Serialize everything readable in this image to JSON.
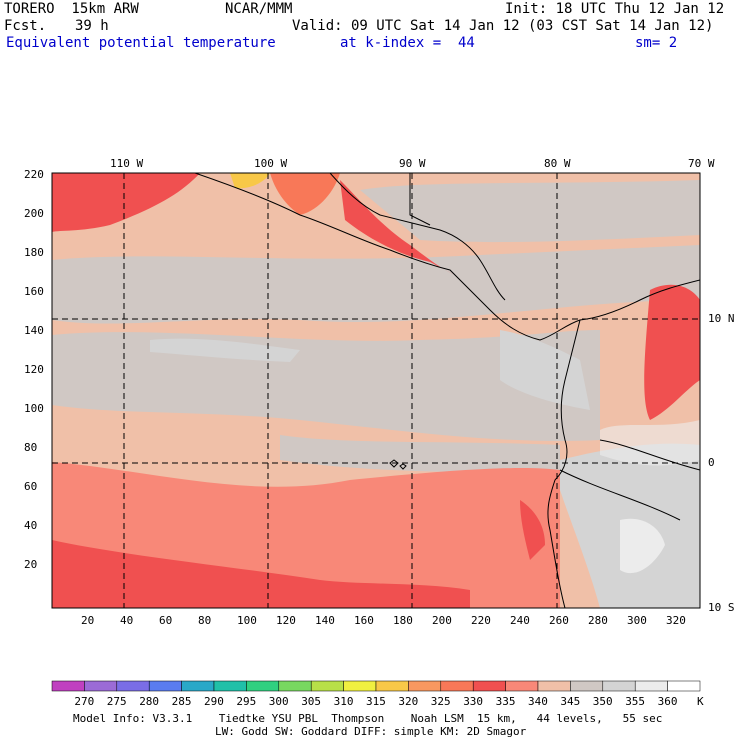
{
  "header": {
    "model": "TORERO  15km ARW",
    "center": "NCAR/MMM",
    "init": "Init: 18 UTC Thu 12 Jan 12",
    "fcst_label": "Fcst.",
    "fcst_value": "39 h",
    "valid": "Valid: 09 UTC Sat 14 Jan 12 (03 CST Sat 14 Jan 12)",
    "field": "Equivalent potential temperature",
    "level": "at k-index =  44",
    "smooth": "sm= 2"
  },
  "map": {
    "lon_labels": [
      "110 W",
      "100 W",
      "90 W",
      "80 W",
      "70 W"
    ],
    "lat_labels": [
      "10 N",
      "0",
      "10 S"
    ],
    "y_ticks": [
      "220",
      "200",
      "180",
      "160",
      "140",
      "120",
      "100",
      "80",
      "60",
      "40",
      "20"
    ],
    "x_ticks": [
      "20",
      "40",
      "60",
      "80",
      "100",
      "120",
      "140",
      "160",
      "180",
      "200",
      "220",
      "240",
      "260",
      "280",
      "300",
      "320"
    ]
  },
  "colorbar": {
    "labels": [
      "270",
      "275",
      "280",
      "285",
      "290",
      "295",
      "300",
      "305",
      "310",
      "315",
      "320",
      "325",
      "330",
      "335",
      "340",
      "345",
      "350",
      "355",
      "360"
    ],
    "unit": "K",
    "colors": [
      "#c040c0",
      "#9b6bd6",
      "#7a6de6",
      "#5a7cef",
      "#2aa8c8",
      "#20c0a8",
      "#30d080",
      "#78d860",
      "#b8e048",
      "#f0f040",
      "#f8c848",
      "#f89860",
      "#f87858",
      "#f05050",
      "#f88878",
      "#f0c0a8",
      "#d0c8c4",
      "#d4d4d4",
      "#ececec",
      "#ffffff"
    ]
  },
  "footer": {
    "line1": "Model Info: V3.3.1    Tiedtke YSU PBL  Thompson    Noah LSM  15 km,   44 levels,   55 sec",
    "line2": "LW: Godd SW: Goddard DIFF: simple KM: 2D Smagor"
  }
}
